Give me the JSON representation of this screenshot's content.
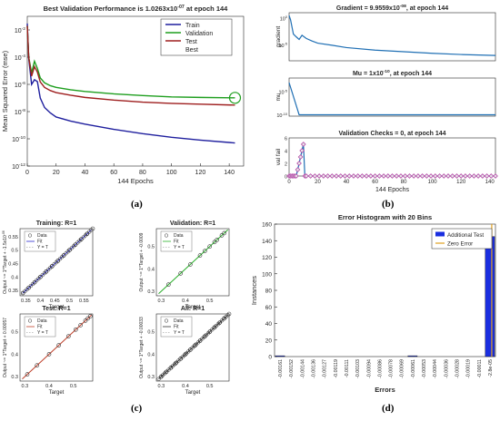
{
  "captions": {
    "a": "(a)",
    "b": "(b)",
    "c": "(c)",
    "d": "(d)"
  },
  "chart_data": [
    {
      "id": "perf",
      "type": "line",
      "title_main": "Best Validation Performance is 1.0263x10",
      "title_exp": "-07",
      "title_tail": " at epoch 144",
      "xlabel": "144 Epochs",
      "ylabel": "Mean Squared Error  (mse)",
      "x_ticks": [
        "0",
        "20",
        "40",
        "60",
        "80",
        "100",
        "120",
        "140"
      ],
      "y_ticks": [
        {
          "base": "10",
          "exp": "-2"
        },
        {
          "base": "10",
          "exp": "-4"
        },
        {
          "base": "10",
          "exp": "-6"
        },
        {
          "base": "10",
          "exp": "-8"
        },
        {
          "base": "10",
          "exp": "-10"
        },
        {
          "base": "10",
          "exp": "-12"
        }
      ],
      "yscale": "log",
      "xlim": [
        0,
        150
      ],
      "ylim": [
        1e-12,
        0.1
      ],
      "legend": [
        "Train",
        "Validation",
        "Test",
        "Best"
      ],
      "legend_position": "top-right",
      "series": [
        {
          "name": "Train",
          "color": "#1f1f9e",
          "x": [
            0,
            1,
            3,
            5,
            7,
            9,
            12,
            16,
            20,
            30,
            40,
            60,
            80,
            100,
            120,
            144
          ],
          "y": [
            0.03,
            8e-05,
            1e-06,
            2.2e-06,
            1.6e-06,
            1e-07,
            2e-08,
            8e-09,
            4e-09,
            2e-09,
            1.2e-09,
            5e-10,
            2.4e-10,
            1.3e-10,
            8e-11,
            5e-11
          ]
        },
        {
          "name": "Validation",
          "color": "#1e9e1e",
          "x": [
            0,
            1,
            3,
            5,
            7,
            9,
            12,
            16,
            20,
            30,
            40,
            60,
            80,
            100,
            120,
            144
          ],
          "y": [
            0.02,
            0.0001,
            7e-06,
            5e-05,
            1.5e-05,
            3e-06,
            1.3e-06,
            8e-07,
            6e-07,
            4e-07,
            3e-07,
            2e-07,
            1.5e-07,
            1.2e-07,
            1.1e-07,
            1.0263e-07
          ]
        },
        {
          "name": "Test",
          "color": "#9e1e1e",
          "x": [
            0,
            1,
            3,
            5,
            7,
            9,
            12,
            16,
            20,
            30,
            40,
            60,
            80,
            100,
            120,
            144
          ],
          "y": [
            0.02,
            9e-05,
            4e-06,
            2e-05,
            8e-06,
            1.5e-06,
            6e-07,
            3.5e-07,
            2.5e-07,
            1.6e-07,
            1.1e-07,
            7e-08,
            5e-08,
            4e-08,
            3.5e-08,
            3e-08
          ]
        }
      ],
      "best": {
        "x": 144,
        "y": 1.0263e-07,
        "color": "#1e9e1e"
      }
    },
    {
      "id": "training_state",
      "type": "line",
      "panels": [
        {
          "title_main": "Gradient = 9.9559x10",
          "title_exp": "-08",
          "title_tail": ", at epoch 144",
          "ylabel": "gradient",
          "yscale": "log",
          "y_ticks": [
            {
              "base": "10",
              "exp": "0"
            },
            {
              "base": "10",
              "exp": "-5"
            }
          ],
          "ylim": [
            1e-08,
            10
          ],
          "x": [
            0,
            1,
            3,
            5,
            7,
            9,
            12,
            16,
            20,
            30,
            40,
            60,
            80,
            100,
            120,
            144
          ],
          "y": [
            3,
            0.5,
            0.001,
            0.0003,
            0.0001,
            0.0006,
            0.00015,
            5e-05,
            2e-05,
            8e-06,
            3e-06,
            1e-06,
            5e-07,
            2.5e-07,
            1.5e-07,
            9.9559e-08
          ]
        },
        {
          "title_main": "Mu = 1x10",
          "title_exp": "-10",
          "title_tail": ", at epoch 144",
          "ylabel": "mu",
          "yscale": "log",
          "y_ticks": [
            {
              "base": "10",
              "exp": "-5"
            },
            {
              "base": "10",
              "exp": "-10"
            }
          ],
          "ylim": [
            5e-11,
            0.01
          ],
          "x": [
            0,
            1,
            2,
            3,
            4,
            5,
            6,
            7,
            8,
            9,
            144
          ],
          "y": [
            0.001,
            0.0001,
            1e-05,
            1e-06,
            1e-07,
            1e-08,
            1e-09,
            1e-10,
            1e-10,
            1e-10,
            1e-10
          ]
        },
        {
          "title_main": "Validation Checks = 0, at epoch 144",
          "title_exp": "",
          "title_tail": "",
          "ylabel": "val fail",
          "yscale": "linear",
          "y_ticks": [
            {
              "base": "0",
              "exp": ""
            },
            {
              "base": "2",
              "exp": ""
            },
            {
              "base": "4",
              "exp": ""
            },
            {
              "base": "6",
              "exp": ""
            }
          ],
          "ylim": [
            0,
            6
          ],
          "x": [
            0,
            1,
            2,
            3,
            4,
            5,
            6,
            7,
            8,
            9,
            10,
            11,
            12,
            20,
            40,
            60,
            80,
            100,
            120,
            144
          ],
          "y": [
            0,
            0,
            0,
            0,
            0,
            0,
            1,
            2,
            3,
            4,
            5,
            0,
            0,
            0,
            0,
            0,
            0,
            0,
            0,
            0
          ]
        }
      ],
      "xlabel": "144 Epochs",
      "x_ticks": [
        "0",
        "20",
        "40",
        "60",
        "80",
        "100",
        "120",
        "140"
      ],
      "xlim": [
        0,
        144
      ],
      "color": "#1f6fb4",
      "marker_color": "#b44aa8"
    },
    {
      "id": "regression",
      "type": "scatter",
      "panels": [
        {
          "title": "Training: R=1",
          "ylabel": "Output ~= 1*Target + -1.5x10",
          "ylabel_exp": "-06",
          "fit_color": "#2a2ad0",
          "x_ticks": [
            "0.35",
            "0.4",
            "0.45",
            "0.5",
            "0.55"
          ],
          "y_ticks": [
            "0.35",
            "0.4",
            "0.45",
            "0.5",
            "0.55"
          ],
          "lim": [
            0.33,
            0.58
          ],
          "data_x": [
            0.34,
            0.36,
            0.38,
            0.4,
            0.42,
            0.44,
            0.46,
            0.48,
            0.5,
            0.52,
            0.54,
            0.56,
            0.58
          ]
        },
        {
          "title": "Validation: R=1",
          "ylabel": "Output ~= 1*Target + -0.0009",
          "ylabel_exp": "",
          "fit_color": "#2ab02a",
          "x_ticks": [
            "0.3",
            "0.4",
            "0.5"
          ],
          "y_ticks": [
            "0.3",
            "0.4",
            "0.5"
          ],
          "lim": [
            0.28,
            0.58
          ],
          "data_x": [
            0.33,
            0.38,
            0.42,
            0.46,
            0.48,
            0.5,
            0.52,
            0.53,
            0.55,
            0.56
          ]
        },
        {
          "title": "Test: R=1",
          "ylabel": "Output ~= 1*Target + 0.00057",
          "ylabel_exp": "",
          "fit_color": "#c0402a",
          "x_ticks": [
            "0.3",
            "0.4",
            "0.5"
          ],
          "y_ticks": [
            "0.3",
            "0.4",
            "0.5"
          ],
          "lim": [
            0.28,
            0.58
          ],
          "data_x": [
            0.31,
            0.35,
            0.4,
            0.44,
            0.48,
            0.51,
            0.53,
            0.55,
            0.56,
            0.57
          ]
        },
        {
          "title": "All: R=1",
          "ylabel": "Output ~= 1*Target + -0.00033",
          "ylabel_exp": "",
          "fit_color": "#333333",
          "x_ticks": [
            "0.3",
            "0.4",
            "0.5"
          ],
          "y_ticks": [
            "0.3",
            "0.4",
            "0.5"
          ],
          "lim": [
            0.28,
            0.58
          ],
          "data_x": [
            0.3,
            0.32,
            0.34,
            0.36,
            0.38,
            0.4,
            0.42,
            0.44,
            0.46,
            0.48,
            0.5,
            0.52,
            0.54,
            0.56,
            0.58
          ]
        }
      ],
      "xlabel": "Target",
      "legend": [
        "Data",
        "Fit",
        "Y = T"
      ]
    },
    {
      "id": "histogram",
      "type": "bar",
      "title": "Error Histogram with 20 Bins",
      "xlabel": "Errors",
      "ylabel": "Instances",
      "y_ticks": [
        "0",
        "20",
        "40",
        "60",
        "80",
        "100",
        "120",
        "140",
        "160"
      ],
      "ylim": [
        0,
        160
      ],
      "categories": [
        "-0.00161",
        "-0.00152",
        "-0.00144",
        "-0.00136",
        "-0.00127",
        "-0.00119",
        "-0.00111",
        "-0.00103",
        "-0.00094",
        "-0.00086",
        "-0.00078",
        "-0.00069",
        "-0.00061",
        "-0.00053",
        "-0.00044",
        "-0.00036",
        "-0.00028",
        "-0.00019",
        "-0.00011",
        "-2.8e-05"
      ],
      "values": [
        1,
        0,
        0,
        0,
        0,
        0,
        0,
        0,
        0,
        0,
        0,
        0,
        1,
        0,
        0,
        0,
        0,
        0,
        0,
        145
      ],
      "legend": [
        "Additional Test",
        "Zero Error"
      ],
      "bar_color": "#1a2ee0",
      "zero_color": "#e0a020"
    }
  ]
}
